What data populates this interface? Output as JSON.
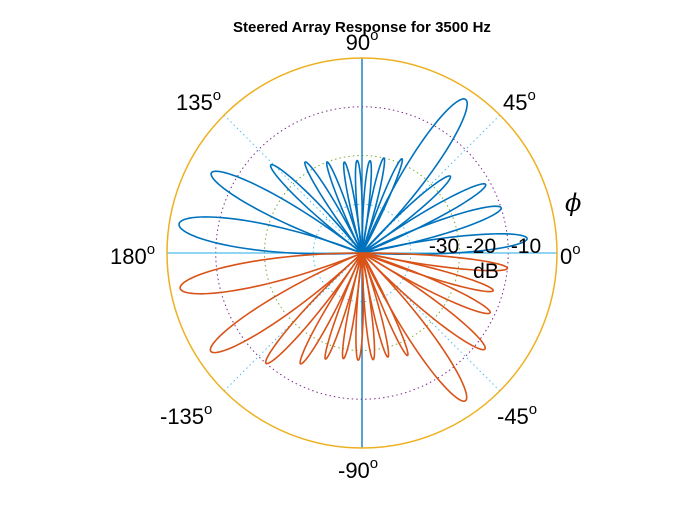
{
  "chart_data": {
    "type": "polar",
    "title": "Steered Array Response for  3500 Hz",
    "angle_symbol": "ϕ",
    "r_unit": "dB",
    "r_ticks": [
      "-30",
      "-20",
      "-10"
    ],
    "angle_ticks": [
      {
        "label": "0",
        "deg": 0
      },
      {
        "label": "45",
        "deg": 45
      },
      {
        "label": "90",
        "deg": 90
      },
      {
        "label": "135",
        "deg": 135
      },
      {
        "label": "180",
        "deg": 180
      },
      {
        "label": "-135",
        "deg": -135
      },
      {
        "label": "-90",
        "deg": -90
      },
      {
        "label": "-45",
        "deg": -45
      }
    ],
    "degree_mark": "o",
    "r_range_db": [
      -40,
      0
    ],
    "grid": true,
    "lobes_upper": [
      {
        "angle_deg": 5,
        "level_db": -6,
        "width_deg": 8
      },
      {
        "angle_deg": 18,
        "level_db": -10,
        "width_deg": 8
      },
      {
        "angle_deg": 29,
        "level_db": -11,
        "width_deg": 7
      },
      {
        "angle_deg": 41,
        "level_db": -16,
        "width_deg": 7
      },
      {
        "angle_deg": 56,
        "level_db": -2,
        "width_deg": 11
      },
      {
        "angle_deg": 67,
        "level_db": -19,
        "width_deg": 5
      },
      {
        "angle_deg": 77,
        "level_db": -20,
        "width_deg": 5
      },
      {
        "angle_deg": 85,
        "level_db": -21,
        "width_deg": 5
      },
      {
        "angle_deg": 93,
        "level_db": -21,
        "width_deg": 5
      },
      {
        "angle_deg": 101,
        "level_db": -21,
        "width_deg": 5
      },
      {
        "angle_deg": 111,
        "level_db": -20,
        "width_deg": 5
      },
      {
        "angle_deg": 122,
        "level_db": -18,
        "width_deg": 6
      },
      {
        "angle_deg": 136,
        "level_db": -14,
        "width_deg": 7
      },
      {
        "angle_deg": 152,
        "level_db": -5,
        "width_deg": 10
      },
      {
        "angle_deg": 171,
        "level_db": -2,
        "width_deg": 12
      }
    ],
    "lobes_lower": [
      {
        "angle_deg": -6,
        "level_db": -10,
        "width_deg": 6
      },
      {
        "angle_deg": -16,
        "level_db": -12,
        "width_deg": 6
      },
      {
        "angle_deg": -25,
        "level_db": -11,
        "width_deg": 7
      },
      {
        "angle_deg": -38,
        "level_db": -8,
        "width_deg": 8
      },
      {
        "angle_deg": -55,
        "level_db": -3,
        "width_deg": 10
      },
      {
        "angle_deg": -66,
        "level_db": -17,
        "width_deg": 5
      },
      {
        "angle_deg": -76,
        "level_db": -18,
        "width_deg": 5
      },
      {
        "angle_deg": -84,
        "level_db": -18,
        "width_deg": 5
      },
      {
        "angle_deg": -92,
        "level_db": -18,
        "width_deg": 5
      },
      {
        "angle_deg": -100,
        "level_db": -18,
        "width_deg": 5
      },
      {
        "angle_deg": -109,
        "level_db": -17,
        "width_deg": 5
      },
      {
        "angle_deg": -119,
        "level_db": -14,
        "width_deg": 6
      },
      {
        "angle_deg": -131,
        "level_db": -10,
        "width_deg": 7
      },
      {
        "angle_deg": -147,
        "level_db": -3,
        "width_deg": 10
      },
      {
        "angle_deg": -169,
        "level_db": -2,
        "width_deg": 11
      }
    ],
    "colors": {
      "upper": "#0072BD",
      "lower": "#D95319",
      "outer_ring": "#EDB120",
      "axis": "#4DBEEE",
      "grid_ring_2": "#7E2F8E",
      "grid_ring_3": "#77AC30",
      "grid_ring_4": "#4DBEEE"
    }
  }
}
